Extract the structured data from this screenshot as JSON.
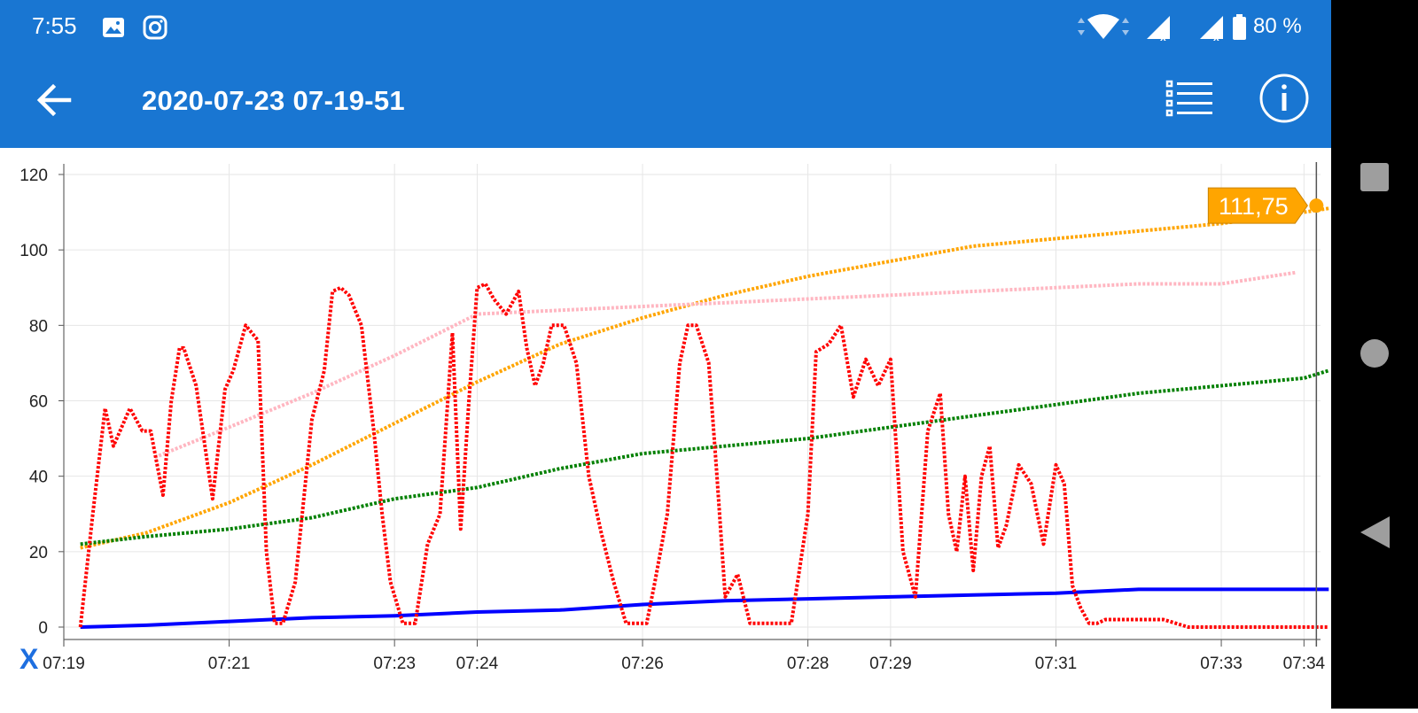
{
  "status_bar": {
    "time": "7:55",
    "battery": "80 %",
    "icons": [
      "image-icon",
      "instagram-icon",
      "wifi-icon",
      "signal-icon",
      "signal-icon",
      "battery-icon"
    ]
  },
  "app_bar": {
    "title": "2020-07-23 07-19-51",
    "back_icon": "arrow-left-icon",
    "list_icon": "list-icon",
    "info_icon": "info-icon"
  },
  "x_axis_button": "X",
  "colors": {
    "header": "#1976d2",
    "orange": "#ffa500",
    "pink": "#ffb6c1",
    "green": "#008000",
    "red": "#ff0000",
    "blue": "#0000ff"
  },
  "tooltip": {
    "value": "111,75"
  },
  "chart_data": {
    "type": "line",
    "x_tick_labels": [
      "07:19",
      "07:21",
      "07:23",
      "07:24",
      "07:26",
      "07:28",
      "07:29",
      "07:31",
      "07:33",
      "07:34"
    ],
    "x_ticks_min": [
      0,
      2,
      4,
      5,
      7,
      9,
      10,
      12,
      14,
      15
    ],
    "y_ticks": [
      0,
      20,
      40,
      60,
      80,
      100,
      120
    ],
    "ylim": [
      0,
      120
    ],
    "xlim": [
      0,
      15.2
    ],
    "grid": true,
    "cursor_x": 15.15,
    "series": [
      {
        "color": "#ffa500",
        "style": "dotted",
        "x": [
          0.2,
          1.0,
          2.0,
          3.0,
          4.0,
          5.0,
          6.0,
          7.0,
          8.0,
          9.0,
          10.0,
          11.0,
          12.0,
          13.0,
          14.0,
          15.0,
          15.3
        ],
        "y": [
          21,
          25,
          33,
          43,
          54,
          65,
          75,
          82,
          88,
          93,
          97,
          101,
          103,
          105,
          107,
          110,
          111
        ]
      },
      {
        "color": "#ffb6c1",
        "style": "dotted",
        "x": [
          1.1,
          2.0,
          3.0,
          4.0,
          5.0,
          6.0,
          7.0,
          8.0,
          9.0,
          10.0,
          11.0,
          12.0,
          13.0,
          14.0,
          14.9
        ],
        "y": [
          45,
          53,
          62,
          72,
          83,
          84,
          85,
          86,
          87,
          88,
          89,
          90,
          91,
          91,
          94
        ]
      },
      {
        "color": "#008000",
        "style": "dotted",
        "x": [
          0.2,
          1.0,
          2.0,
          3.0,
          4.0,
          5.0,
          6.0,
          7.0,
          8.0,
          9.0,
          10.0,
          11.0,
          12.0,
          13.0,
          14.0,
          15.0,
          15.3
        ],
        "y": [
          22,
          24,
          26,
          29,
          34,
          37,
          42,
          46,
          48,
          50,
          53,
          56,
          59,
          62,
          64,
          66,
          68
        ]
      },
      {
        "color": "#0000ff",
        "style": "solid",
        "x": [
          0.2,
          1.0,
          2.0,
          3.0,
          4.0,
          5.0,
          6.0,
          7.0,
          8.0,
          9.0,
          10.0,
          11.0,
          12.0,
          13.0,
          14.0,
          15.3
        ],
        "y": [
          0,
          0.5,
          1.5,
          2.5,
          3,
          4,
          4.5,
          6,
          7,
          7.5,
          8,
          8.5,
          9,
          10,
          10,
          10
        ]
      },
      {
        "color": "#ff0000",
        "style": "dotted",
        "x": [
          0.2,
          0.35,
          0.5,
          0.6,
          0.8,
          0.95,
          1.05,
          1.2,
          1.3,
          1.4,
          1.45,
          1.6,
          1.8,
          1.95,
          2.05,
          2.2,
          2.35,
          2.45,
          2.55,
          2.65,
          2.8,
          3.0,
          3.15,
          3.25,
          3.35,
          3.45,
          3.6,
          3.75,
          3.85,
          3.95,
          4.1,
          4.25,
          4.4,
          4.55,
          4.7,
          4.8,
          4.9,
          5.0,
          5.1,
          5.2,
          5.35,
          5.5,
          5.6,
          5.7,
          5.8,
          5.9,
          6.05,
          6.2,
          6.35,
          6.5,
          6.65,
          6.8,
          6.95,
          7.05,
          7.15,
          7.3,
          7.45,
          7.55,
          7.65,
          7.8,
          7.9,
          8.0,
          8.15,
          8.3,
          8.45,
          8.6,
          8.8,
          9.0,
          9.1,
          9.25,
          9.4,
          9.55,
          9.7,
          9.85,
          10.0,
          10.15,
          10.3,
          10.45,
          10.6,
          10.7,
          10.8,
          10.9,
          11.0,
          11.1,
          11.2,
          11.3,
          11.4,
          11.55,
          11.7,
          11.85,
          12.0,
          12.1,
          12.2,
          12.3,
          12.4,
          12.5,
          12.6,
          12.7,
          12.8,
          12.9,
          13.0,
          13.15,
          13.3,
          13.45,
          13.6,
          13.7,
          13.8,
          13.9,
          14.0,
          14.3,
          14.5,
          14.7,
          14.9,
          15.0,
          15.3
        ],
        "y": [
          0,
          30,
          58,
          48,
          58,
          52,
          52,
          35,
          60,
          74,
          74,
          64,
          34,
          63,
          68,
          80,
          76,
          20,
          1,
          1,
          12,
          55,
          68,
          89,
          90,
          88,
          80,
          52,
          30,
          12,
          1,
          1,
          22,
          30,
          78,
          26,
          60,
          90,
          91,
          87,
          83,
          89,
          74,
          64,
          70,
          80,
          80,
          70,
          40,
          25,
          12,
          1,
          1,
          1,
          12,
          30,
          70,
          80,
          80,
          70,
          40,
          8,
          14,
          1,
          1,
          1,
          1,
          30,
          73,
          75,
          80,
          61,
          71,
          64,
          71,
          20,
          8,
          52,
          62,
          30,
          20,
          40,
          15,
          40,
          48,
          21,
          27,
          43,
          38,
          22,
          43,
          38,
          11,
          5,
          1,
          1,
          2,
          2,
          2,
          2,
          2,
          2,
          2,
          1,
          0,
          0,
          0,
          0,
          0,
          0,
          0,
          0,
          0,
          0,
          0
        ]
      }
    ]
  }
}
